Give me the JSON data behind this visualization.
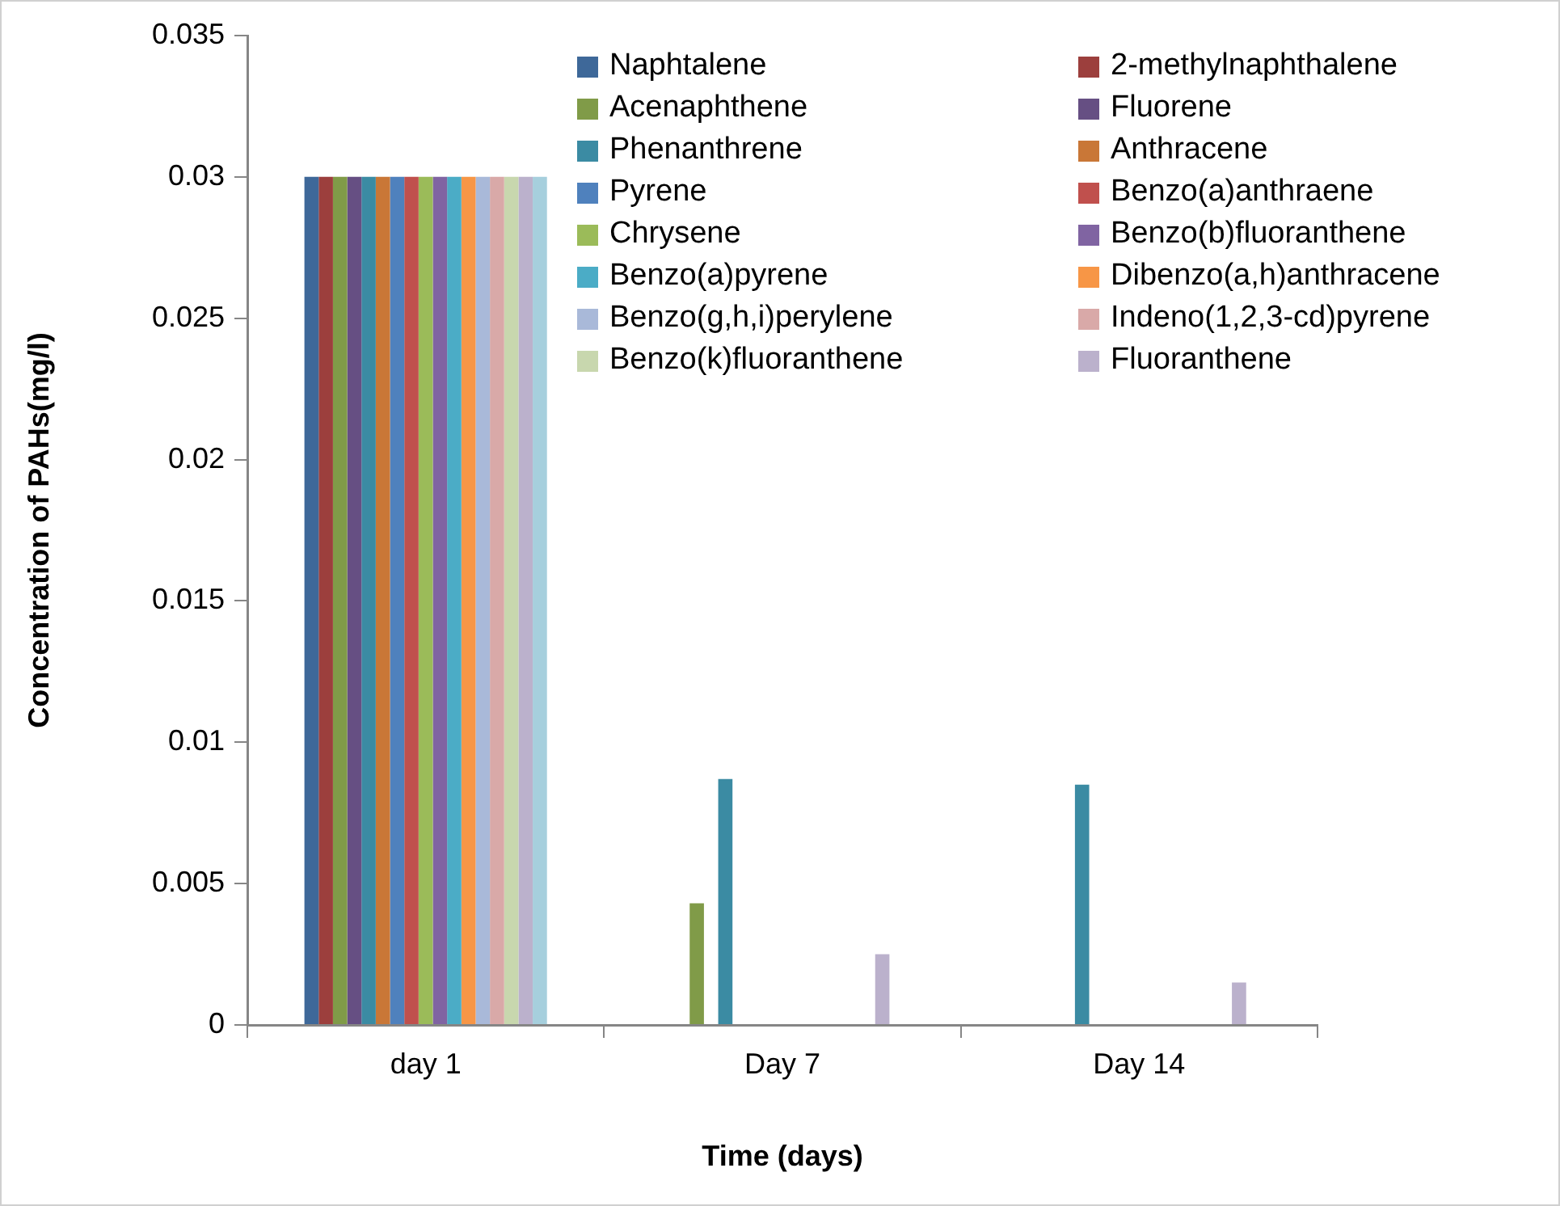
{
  "chart_data": {
    "type": "bar",
    "xlabel": "Time (days)",
    "ylabel": "Concentration of PAHs(mg/l)",
    "categories": [
      "day 1",
      "Day 7",
      "Day 14"
    ],
    "ylim": [
      0,
      0.035
    ],
    "yticks": [
      0,
      0.005,
      0.01,
      0.015,
      0.02,
      0.025,
      0.03,
      0.035
    ],
    "grid": false,
    "legend": "top right",
    "series": [
      {
        "name": "Naphtalene",
        "color": "#3e6899",
        "values": [
          0.03,
          0,
          0
        ]
      },
      {
        "name": "2-methylnaphthalene",
        "color": "#9c3f3d",
        "values": [
          0.03,
          0,
          0
        ]
      },
      {
        "name": "Acenaphthene",
        "color": "#809b48",
        "values": [
          0.03,
          0.0043,
          0
        ]
      },
      {
        "name": "Fluorene",
        "color": "#664f83",
        "values": [
          0.03,
          0,
          0
        ]
      },
      {
        "name": "Phenanthrene",
        "color": "#3b8ba3",
        "values": [
          0.03,
          0.0087,
          0.0085
        ]
      },
      {
        "name": "Anthracene",
        "color": "#c97737",
        "values": [
          0.03,
          0,
          0
        ]
      },
      {
        "name": "Pyrene",
        "color": "#4f81bd",
        "values": [
          0.03,
          0,
          0
        ]
      },
      {
        "name": "Benzo(a)anthraene",
        "color": "#c0504d",
        "values": [
          0.03,
          0,
          0
        ]
      },
      {
        "name": "Chrysene",
        "color": "#9bbb59",
        "values": [
          0.03,
          0,
          0
        ]
      },
      {
        "name": "Benzo(b)fluoranthene",
        "color": "#8064a2",
        "values": [
          0.03,
          0,
          0
        ]
      },
      {
        "name": "Benzo(a)pyrene",
        "color": "#4bacc6",
        "values": [
          0.03,
          0,
          0
        ]
      },
      {
        "name": "Dibenzo(a,h)anthracene",
        "color": "#f79646",
        "values": [
          0.03,
          0,
          0
        ]
      },
      {
        "name": "Benzo(g,h,i)perylene",
        "color": "#a9b9d9",
        "values": [
          0.03,
          0,
          0
        ]
      },
      {
        "name": "Indeno(1,2,3-cd)pyrene",
        "color": "#d9a9a8",
        "values": [
          0.03,
          0,
          0
        ]
      },
      {
        "name": "Benzo(k)fluoranthene",
        "color": "#c8d7ae",
        "values": [
          0.03,
          0,
          0
        ]
      },
      {
        "name": "Fluoranthene",
        "color": "#bbb1cc",
        "values": [
          0.03,
          0.0025,
          0.0015
        ]
      },
      {
        "color": "#a6cfdd",
        "values": [
          0.03,
          0,
          0
        ]
      }
    ]
  }
}
